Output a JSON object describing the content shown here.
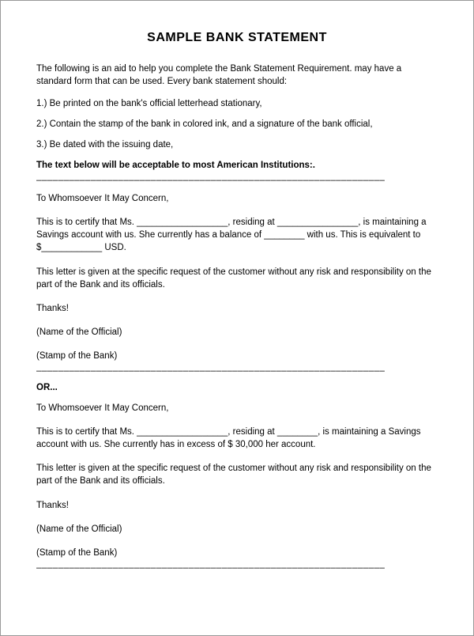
{
  "title": "SAMPLE BANK STATEMENT",
  "intro": "The  following is an aid to help you complete the Bank Statement Requirement. may have a standard form that can be used.   Every bank statement should:",
  "req1": "1.) Be printed on the bank's official letterhead stationary,",
  "req2": "2.) Contain the stamp of the bank in colored ink, and a signature of the bank official,",
  "req3": "3.) Be dated with the issuing date,",
  "boldLine": "The text below will be acceptable to most American Institutions:.",
  "divider1": "________________________________________________________________",
  "salutation1": "To Whomsoever It May Concern,",
  "certify1": "This is to certify that Ms. __________________, residing at ________________,  is maintaining a Savings account with us.  She currently has a balance of ________ with us.  This is equivalent to $____________  USD.",
  "disclaimer1": "This letter is given at the specific request of the customer without any risk and responsibility on the part of the Bank and its officials.",
  "thanks1": "Thanks!",
  "nameOfficial1": "(Name of the Official)",
  "stampBank1": "(Stamp of the Bank)",
  "divider2": "________________________________________________________________",
  "orText": "OR...",
  "salutation2": "To Whomsoever It May Concern,",
  "certify2": "This is to certify that Ms. __________________, residing at ________,  is maintaining a Savings account with us.  She currently has in excess of $ 30,000 her account.",
  "disclaimer2": "This letter is given at the specific request of the customer without any risk and responsibility on the part of the Bank and its officials.",
  "thanks2": "Thanks!",
  "nameOfficial2": "(Name of the Official)",
  "stampBank2": "(Stamp of the Bank)",
  "divider3": "________________________________________________________________",
  "style": {
    "pageWidth": 600,
    "pageHeight": 804,
    "borderColor": "#999999",
    "backgroundColor": "#ffffff",
    "textColor": "#000000",
    "fontFamily": "Arial, sans-serif",
    "titleFontSize": 16,
    "bodyFontSize": 11.5,
    "paddingTop": 38,
    "paddingSides": 45
  }
}
